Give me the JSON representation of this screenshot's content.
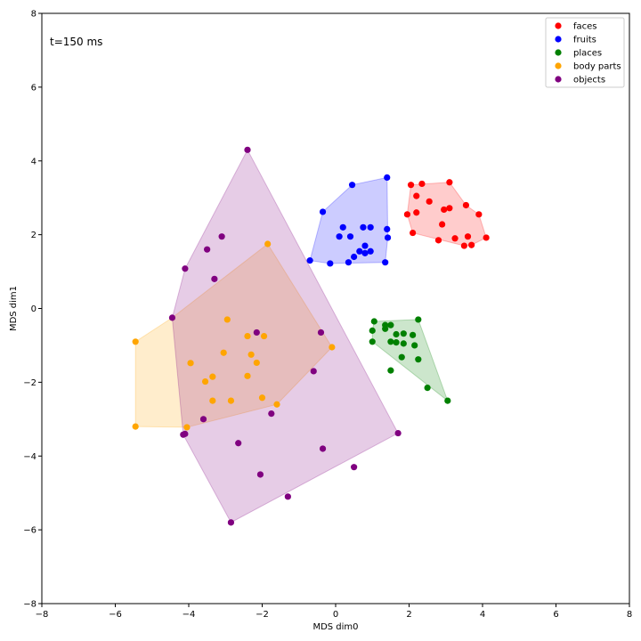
{
  "chart_data": {
    "type": "scatter",
    "title": "",
    "annotation": "t=150 ms",
    "xlabel": "MDS dim0",
    "ylabel": "MDS dim1",
    "xlim": [
      -8,
      8
    ],
    "ylim": [
      -8,
      8
    ],
    "xticks": [
      -8,
      -6,
      -4,
      -2,
      0,
      2,
      4,
      6,
      8
    ],
    "yticks": [
      -8,
      -6,
      -4,
      -2,
      0,
      2,
      4,
      6,
      8
    ],
    "legend_position": "top-right",
    "series": [
      {
        "name": "faces",
        "color": "#ff0000",
        "points": [
          [
            2.05,
            3.35
          ],
          [
            2.35,
            3.38
          ],
          [
            3.1,
            3.42
          ],
          [
            2.2,
            3.05
          ],
          [
            2.55,
            2.9
          ],
          [
            3.55,
            2.8
          ],
          [
            3.1,
            2.72
          ],
          [
            2.95,
            2.68
          ],
          [
            1.95,
            2.55
          ],
          [
            2.2,
            2.6
          ],
          [
            3.9,
            2.55
          ],
          [
            2.9,
            2.28
          ],
          [
            2.1,
            2.05
          ],
          [
            2.8,
            1.85
          ],
          [
            3.25,
            1.9
          ],
          [
            3.6,
            1.95
          ],
          [
            4.1,
            1.92
          ],
          [
            3.5,
            1.7
          ],
          [
            3.7,
            1.72
          ]
        ],
        "hull": [
          [
            2.05,
            3.35
          ],
          [
            3.1,
            3.42
          ],
          [
            3.55,
            2.8
          ],
          [
            3.9,
            2.55
          ],
          [
            4.1,
            1.92
          ],
          [
            3.7,
            1.72
          ],
          [
            3.5,
            1.7
          ],
          [
            2.1,
            2.05
          ],
          [
            1.95,
            2.55
          ]
        ]
      },
      {
        "name": "fruits",
        "color": "#0000ff",
        "points": [
          [
            1.4,
            3.55
          ],
          [
            0.45,
            3.35
          ],
          [
            -0.35,
            2.62
          ],
          [
            0.2,
            2.2
          ],
          [
            0.75,
            2.2
          ],
          [
            0.95,
            2.2
          ],
          [
            1.4,
            2.15
          ],
          [
            0.1,
            1.95
          ],
          [
            0.4,
            1.95
          ],
          [
            1.42,
            1.92
          ],
          [
            0.8,
            1.7
          ],
          [
            0.65,
            1.55
          ],
          [
            0.8,
            1.5
          ],
          [
            0.95,
            1.55
          ],
          [
            0.5,
            1.4
          ],
          [
            -0.7,
            1.3
          ],
          [
            -0.15,
            1.22
          ],
          [
            0.35,
            1.25
          ],
          [
            1.35,
            1.25
          ]
        ],
        "hull": [
          [
            0.45,
            3.35
          ],
          [
            1.4,
            3.55
          ],
          [
            1.42,
            1.92
          ],
          [
            1.35,
            1.25
          ],
          [
            -0.15,
            1.22
          ],
          [
            -0.7,
            1.3
          ],
          [
            -0.35,
            2.62
          ]
        ]
      },
      {
        "name": "places",
        "color": "#008000",
        "points": [
          [
            2.25,
            -0.3
          ],
          [
            1.05,
            -0.35
          ],
          [
            1.35,
            -0.45
          ],
          [
            1.5,
            -0.45
          ],
          [
            1.0,
            -0.6
          ],
          [
            1.35,
            -0.55
          ],
          [
            1.65,
            -0.7
          ],
          [
            1.85,
            -0.68
          ],
          [
            2.1,
            -0.72
          ],
          [
            1.0,
            -0.9
          ],
          [
            1.5,
            -0.9
          ],
          [
            1.65,
            -0.92
          ],
          [
            1.85,
            -0.95
          ],
          [
            2.15,
            -1.0
          ],
          [
            1.8,
            -1.32
          ],
          [
            2.25,
            -1.38
          ],
          [
            1.5,
            -1.68
          ],
          [
            2.5,
            -2.15
          ],
          [
            3.05,
            -2.5
          ]
        ],
        "hull": [
          [
            1.05,
            -0.35
          ],
          [
            2.25,
            -0.3
          ],
          [
            3.05,
            -2.5
          ],
          [
            1.0,
            -0.9
          ],
          [
            1.0,
            -0.6
          ]
        ]
      },
      {
        "name": "body parts",
        "color": "#ffa500",
        "points": [
          [
            -1.85,
            1.75
          ],
          [
            -2.95,
            -0.3
          ],
          [
            -2.4,
            -0.75
          ],
          [
            -1.95,
            -0.75
          ],
          [
            -0.1,
            -1.05
          ],
          [
            -3.05,
            -1.2
          ],
          [
            -2.3,
            -1.25
          ],
          [
            -3.95,
            -1.48
          ],
          [
            -2.15,
            -1.47
          ],
          [
            -3.35,
            -1.85
          ],
          [
            -2.4,
            -1.83
          ],
          [
            -3.55,
            -1.98
          ],
          [
            -2.0,
            -2.42
          ],
          [
            -3.35,
            -2.5
          ],
          [
            -2.85,
            -2.5
          ],
          [
            -1.6,
            -2.6
          ],
          [
            -5.45,
            -0.9
          ],
          [
            -5.45,
            -3.2
          ],
          [
            -4.05,
            -3.22
          ]
        ],
        "hull": [
          [
            -1.85,
            1.75
          ],
          [
            -0.1,
            -1.05
          ],
          [
            -1.6,
            -2.6
          ],
          [
            -4.05,
            -3.22
          ],
          [
            -5.45,
            -3.2
          ],
          [
            -5.45,
            -0.9
          ],
          [
            -4.45,
            -0.25
          ]
        ]
      },
      {
        "name": "objects",
        "color": "#800080",
        "points": [
          [
            -2.4,
            4.3
          ],
          [
            -3.1,
            1.95
          ],
          [
            -3.5,
            1.6
          ],
          [
            -4.1,
            1.08
          ],
          [
            -3.3,
            0.8
          ],
          [
            -4.45,
            -0.25
          ],
          [
            -2.15,
            -0.65
          ],
          [
            -0.4,
            -0.65
          ],
          [
            -0.6,
            -1.7
          ],
          [
            -1.75,
            -2.85
          ],
          [
            -3.6,
            -3.0
          ],
          [
            -4.1,
            -3.4
          ],
          [
            -4.15,
            -3.42
          ],
          [
            -2.65,
            -3.65
          ],
          [
            -0.35,
            -3.8
          ],
          [
            1.7,
            -3.38
          ],
          [
            0.5,
            -4.3
          ],
          [
            -2.05,
            -4.5
          ],
          [
            -1.3,
            -5.1
          ],
          [
            -2.85,
            -5.8
          ]
        ],
        "hull": [
          [
            -2.4,
            4.3
          ],
          [
            1.7,
            -3.38
          ],
          [
            -2.85,
            -5.8
          ],
          [
            -4.15,
            -3.42
          ],
          [
            -4.45,
            -0.25
          ],
          [
            -4.1,
            1.08
          ]
        ]
      }
    ]
  }
}
